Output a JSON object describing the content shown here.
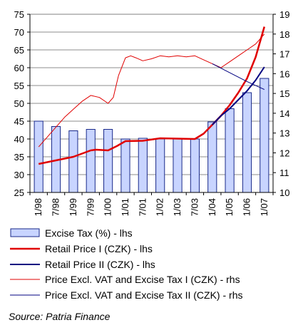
{
  "chart_data": {
    "type": "bar",
    "categories": [
      "1/98",
      "7/98",
      "1/99",
      "7/99",
      "1/00",
      "1/01",
      "7/01",
      "1/02",
      "1/03",
      "7/03",
      "1/04",
      "1/05",
      "1/06",
      "1/07"
    ],
    "left_axis": {
      "min": 25,
      "max": 75,
      "step": 5
    },
    "right_axis": {
      "min": 10,
      "max": 19,
      "step": 1
    },
    "series": [
      {
        "name": "Excise Tax (%) - lhs",
        "kind": "bar",
        "axis": "left",
        "color": "#c8d4ff",
        "edge": "#1a2a8a",
        "values": [
          45,
          43.5,
          42.3,
          42.7,
          42.7,
          40,
          40.2,
          40,
          40,
          40,
          44.8,
          48.5,
          53,
          57
        ]
      },
      {
        "name": "Retail Price I (CZK) - lhs",
        "kind": "line",
        "axis": "left",
        "color": "#e00000",
        "width": 2.5,
        "x": [
          0,
          1,
          2,
          3,
          3.3,
          4,
          4.5,
          5,
          6,
          7,
          8,
          9,
          9.5,
          10,
          10.5,
          11,
          11.5,
          12,
          12.5,
          13
        ],
        "values": [
          33,
          34,
          35,
          36.8,
          37,
          36.8,
          38,
          39.4,
          39.5,
          40.2,
          40.1,
          40,
          41.5,
          44,
          46.5,
          49.5,
          53,
          57,
          63,
          71.5
        ]
      },
      {
        "name": "Retail Price II (CZK)  - lhs",
        "kind": "line",
        "axis": "left",
        "color": "#000080",
        "width": 2,
        "x": [
          10,
          10.5,
          11,
          11.5,
          12,
          12.5,
          13
        ],
        "values": [
          44,
          46.5,
          48.5,
          51,
          53.5,
          56.5,
          60.2
        ]
      },
      {
        "name": "Price Excl. VAT and Excise Tax I (CZK) - rhs",
        "kind": "line",
        "axis": "right",
        "color": "#e00000",
        "width": 1,
        "x": [
          0,
          0.5,
          1,
          1.5,
          2,
          2.5,
          3,
          3.5,
          4,
          4.3,
          4.6,
          5,
          5.3,
          5.6,
          6,
          6.5,
          7,
          7.5,
          8,
          8.5,
          9,
          9.5,
          10,
          10.5,
          11,
          11.5,
          12,
          12.5,
          13
        ],
        "values": [
          12.3,
          12.8,
          13.3,
          13.8,
          14.2,
          14.6,
          14.9,
          14.8,
          14.5,
          14.8,
          15.9,
          16.8,
          16.9,
          16.8,
          16.65,
          16.75,
          16.9,
          16.85,
          16.9,
          16.85,
          16.9,
          16.7,
          16.5,
          16.3,
          16.6,
          16.9,
          17.2,
          17.5,
          18.0
        ]
      },
      {
        "name": "Price Excl. VAT and Excise Tax II (CZK) - rhs",
        "kind": "line",
        "axis": "right",
        "color": "#000080",
        "width": 1,
        "x": [
          10,
          11,
          12,
          13
        ],
        "values": [
          16.5,
          16.05,
          15.6,
          15.2
        ]
      }
    ]
  },
  "source_text": "Source: Patria Finance"
}
